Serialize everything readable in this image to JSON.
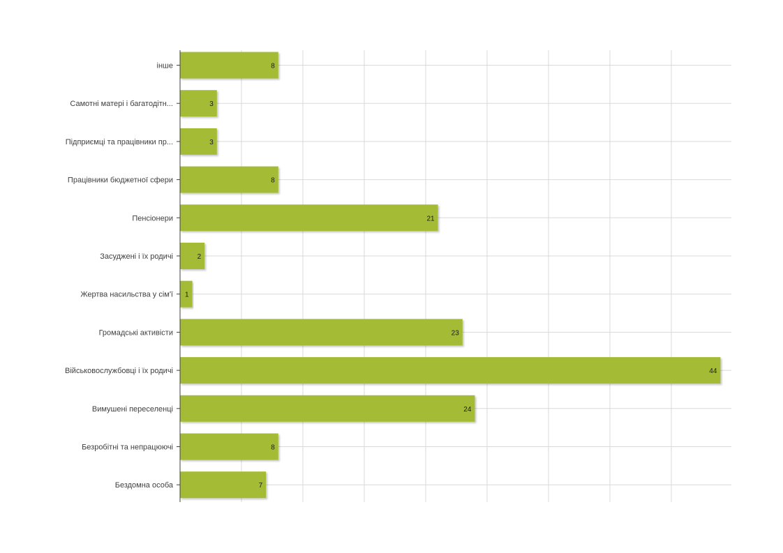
{
  "chart_data": {
    "type": "bar",
    "orientation": "horizontal",
    "categories": [
      "інше",
      "Самотні матері і багатодітн...",
      "Підприємці та працівники пр...",
      "Працівники бюджетної сфери",
      "Пенсіонери",
      "Засуджені і їх родичі",
      "Жертва насильства у сім'ї",
      "Громадські активісти",
      "Військовослужбовці і їх родичі",
      "Вимушені переселенці",
      "Безробітні та непрацюючі",
      "Бездомна особа"
    ],
    "values": [
      8,
      3,
      3,
      8,
      21,
      2,
      1,
      23,
      44,
      24,
      8,
      7
    ],
    "xlim": [
      0,
      45
    ],
    "grid": true,
    "data_labels": true,
    "bar_color": "#a4bc35",
    "title": "",
    "xlabel": "",
    "ylabel": ""
  }
}
